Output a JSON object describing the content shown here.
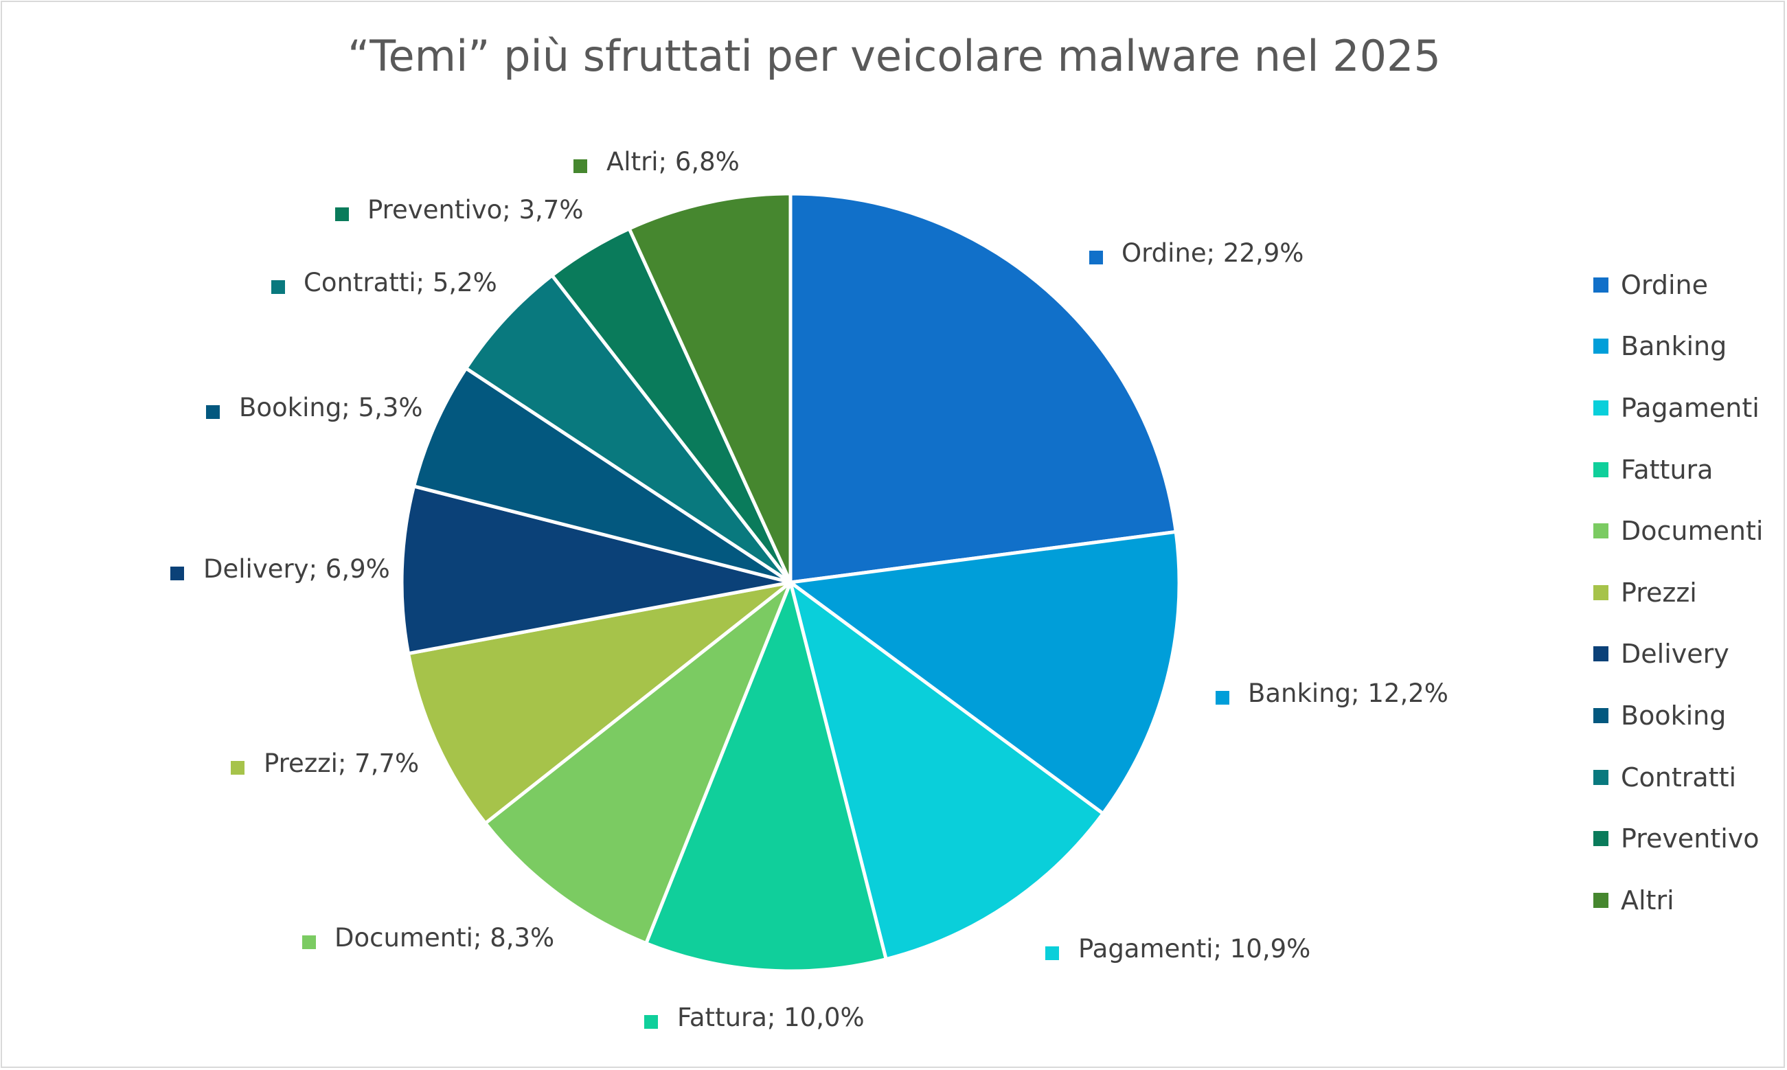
{
  "chart_data": {
    "type": "pie",
    "title": "“Temi” più sfruttati per veicolare malware nel 2025",
    "slices": [
      {
        "name": "Ordine",
        "value": 22.9,
        "label": "Ordine; 22,9%",
        "color": "#1170C9"
      },
      {
        "name": "Banking",
        "value": 12.2,
        "label": "Banking; 12,2%",
        "color": "#009ED9"
      },
      {
        "name": "Pagamenti",
        "value": 10.9,
        "label": "Pagamenti; 10,9%",
        "color": "#0ACFDA"
      },
      {
        "name": "Fattura",
        "value": 10.0,
        "label": "Fattura; 10,0%",
        "color": "#10CF9B"
      },
      {
        "name": "Documenti",
        "value": 8.3,
        "label": "Documenti; 8,3%",
        "color": "#7BCB62"
      },
      {
        "name": "Prezzi",
        "value": 7.7,
        "label": "Prezzi; 7,7%",
        "color": "#A6C34A"
      },
      {
        "name": "Delivery",
        "value": 6.9,
        "label": "Delivery; 6,9%",
        "color": "#0B4178"
      },
      {
        "name": "Booking",
        "value": 5.3,
        "label": "Booking; 5,3%",
        "color": "#03587F"
      },
      {
        "name": "Contratti",
        "value": 5.2,
        "label": "Contratti; 5,2%",
        "color": "#09797E"
      },
      {
        "name": "Preventivo",
        "value": 3.7,
        "label": "Preventivo; 3,7%",
        "color": "#0A7B5B"
      },
      {
        "name": "Altri",
        "value": 6.8,
        "label": "Altri; 6,8%",
        "color": "#46872F"
      }
    ],
    "legend_position": "right"
  }
}
